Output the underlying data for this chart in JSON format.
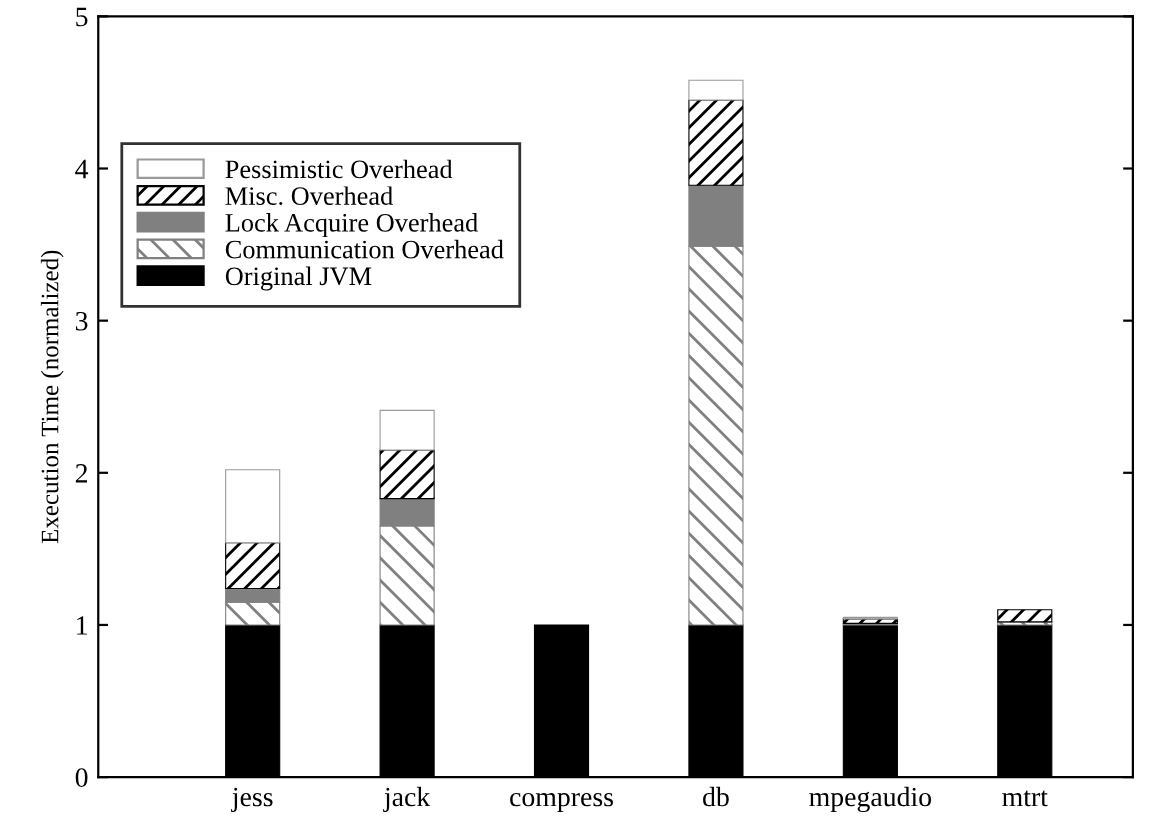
{
  "chart_data": {
    "type": "bar",
    "stacked": true,
    "ylabel": "Execution Time (normalized)",
    "categories": [
      "jess",
      "jack",
      "compress",
      "db",
      "mpegaudio",
      "mtrt"
    ],
    "series": [
      {
        "name": "Original JVM",
        "color": "#000000",
        "values": [
          1,
          1,
          1,
          1,
          1,
          1
        ]
      },
      {
        "name": "Communication Overhead",
        "color": "#808080",
        "values": [
          0.15,
          0.65,
          0,
          2.49,
          0,
          0.02
        ]
      },
      {
        "name": "Lock Acquire Overhead",
        "color": "#808080",
        "values": [
          0.09,
          0.18,
          0,
          0.4,
          0.01,
          0
        ]
      },
      {
        "name": "Misc. Overhead",
        "color": "#000000",
        "values": [
          0.3,
          0.32,
          0,
          0.56,
          0.03,
          0.08
        ]
      },
      {
        "name": "Pessimistic Overhead",
        "color": "#ffffff",
        "values": [
          0.48,
          0.26,
          0,
          0.13,
          0.01,
          0
        ]
      }
    ],
    "ylim": [
      0,
      5
    ],
    "yticks": [
      0,
      1,
      2,
      3,
      4,
      5
    ],
    "grid": false,
    "legend": "top left"
  }
}
